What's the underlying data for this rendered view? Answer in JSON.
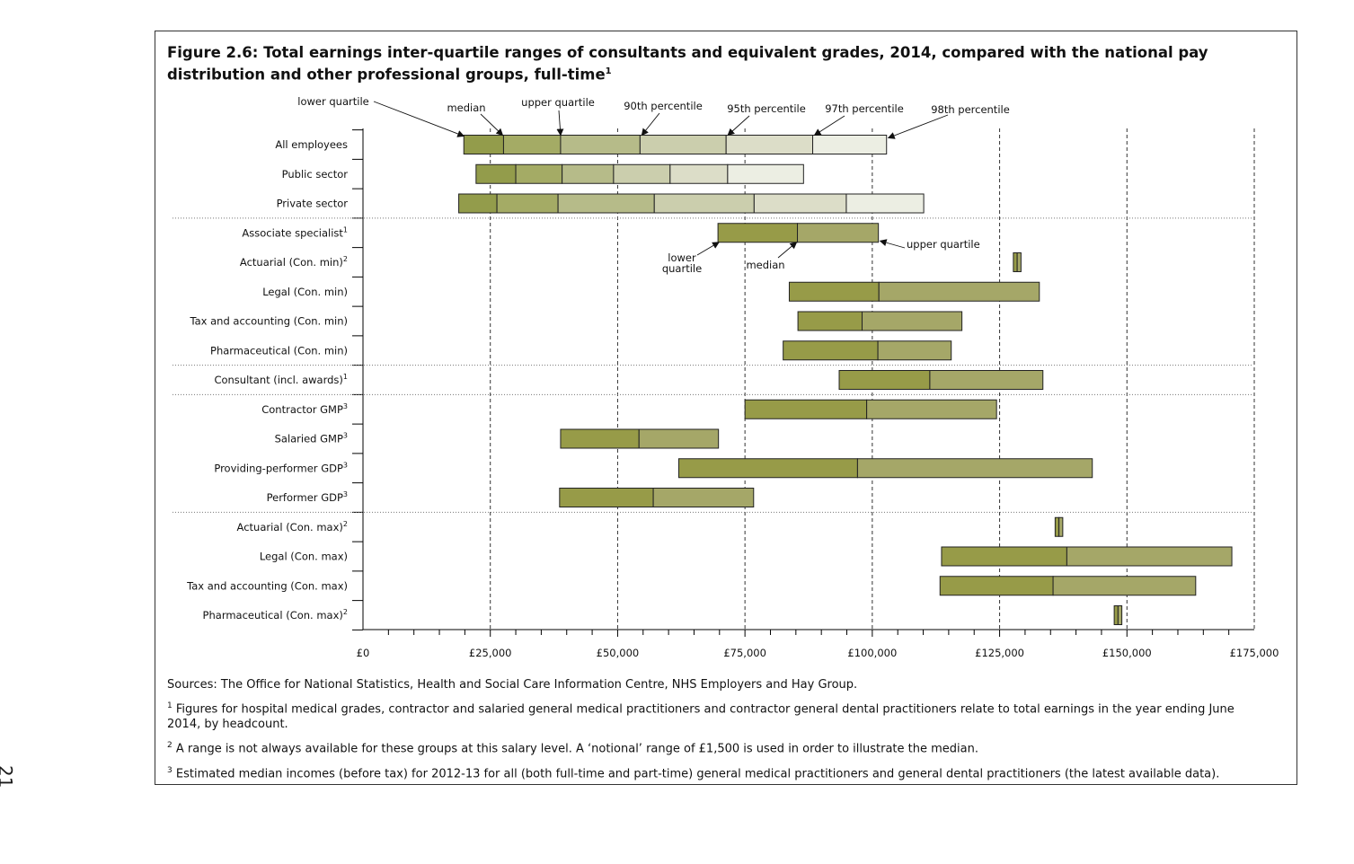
{
  "page_number": "21",
  "title": "Figure 2.6: Total earnings inter-quartile ranges of consultants and equivalent grades, 2014, compared with the national pay distribution and other professional groups, full-time",
  "title_sup": "1",
  "chart_data": {
    "type": "bar",
    "subtype": "horizontal floating range (inter-quartile) bars",
    "xlim": [
      0,
      175000
    ],
    "x_ticks": [
      0,
      25000,
      50000,
      75000,
      100000,
      125000,
      150000,
      175000
    ],
    "x_tick_labels": [
      "£0",
      "£25,000",
      "£50,000",
      "£75,000",
      "£100,000",
      "£125,000",
      "£150,000",
      "£175,000"
    ],
    "rows": [
      {
        "label": "All employees",
        "sup": "",
        "segments": [
          19800,
          27600,
          38800,
          54400,
          71300,
          88300,
          102800
        ]
      },
      {
        "label": "Public sector",
        "sup": "",
        "segments": [
          22200,
          30000,
          39100,
          49200,
          60300,
          71600,
          86500
        ]
      },
      {
        "label": "Private sector",
        "sup": "",
        "segments": [
          18800,
          26300,
          38300,
          57200,
          76800,
          94900,
          110100
        ]
      },
      {
        "label": "Associate specialist",
        "sup": "1",
        "lq": 69700,
        "median": 85300,
        "uq": 101200
      },
      {
        "label": "Actuarial (Con. min)",
        "sup": "2",
        "lq": 127700,
        "median": 128450,
        "uq": 129200
      },
      {
        "label": "Legal (Con. min)",
        "sup": "",
        "lq": 83700,
        "median": 101300,
        "uq": 132800
      },
      {
        "label": "Tax and accounting (Con. min)",
        "sup": "",
        "lq": 85400,
        "median": 98000,
        "uq": 117600
      },
      {
        "label": "Pharmaceutical (Con. min)",
        "sup": "",
        "lq": 82500,
        "median": 101100,
        "uq": 115500
      },
      {
        "label": "Consultant (incl. awards)",
        "sup": "1",
        "lq": 93500,
        "median": 111300,
        "uq": 133500
      },
      {
        "label": "Contractor GMP",
        "sup": "3",
        "lq": 75000,
        "median": 98900,
        "uq": 124400
      },
      {
        "label": "Salaried GMP",
        "sup": "3",
        "lq": 38800,
        "median": 54200,
        "uq": 69800
      },
      {
        "label": "Providing-performer GDP",
        "sup": "3",
        "lq": 62000,
        "median": 97100,
        "uq": 143200
      },
      {
        "label": "Performer GDP",
        "sup": "3",
        "lq": 38600,
        "median": 57000,
        "uq": 76700
      },
      {
        "label": "Actuarial (Con. max)",
        "sup": "2",
        "lq": 135900,
        "median": 136650,
        "uq": 137400
      },
      {
        "label": "Legal (Con. max)",
        "sup": "",
        "lq": 113600,
        "median": 138200,
        "uq": 170600
      },
      {
        "label": "Tax and accounting (Con. max)",
        "sup": "",
        "lq": 113300,
        "median": 135500,
        "uq": 163500
      },
      {
        "label": "Pharmaceutical (Con. max)",
        "sup": "2",
        "lq": 147500,
        "median": 148250,
        "uq": 149000
      }
    ],
    "group_separators_after_row": [
      2,
      7,
      8,
      12
    ],
    "distribution_legend": [
      "lower quartile",
      "median",
      "upper quartile",
      "90th percentile",
      "95th percentile",
      "97th percentile",
      "98th percentile"
    ],
    "example_legend": [
      "lower quartile",
      "median",
      "upper quartile"
    ],
    "example_legend_row": "Associate specialist",
    "colors": {
      "dist": [
        "#939c4b",
        "#a4ab65",
        "#b6bb89",
        "#cbcead",
        "#dcddc8",
        "#eceee3"
      ],
      "lower_half": "#979b48",
      "upper_half": "#a5a768",
      "grid": "#333333",
      "separator": "#777777"
    }
  },
  "notes": {
    "sources": "Sources:  The Office for National Statistics, Health and Social Care Information Centre, NHS Employers and Hay Group.",
    "note1_mark": "1",
    "note1": " Figures for hospital medical grades, contractor and salaried general medical practitioners and contractor general dental practitioners relate to total earnings in the year ending June 2014, by headcount.",
    "note2_mark": "2",
    "note2": " A range is not always available for these groups at this salary level.  A ‘notional’ range of £1,500 is used in order to illustrate the median.",
    "note3_mark": "3",
    "note3": " Estimated median incomes (before tax) for 2012-13 for all (both full-time and part-time) general medical practitioners and general dental practitioners (the latest available data)."
  }
}
